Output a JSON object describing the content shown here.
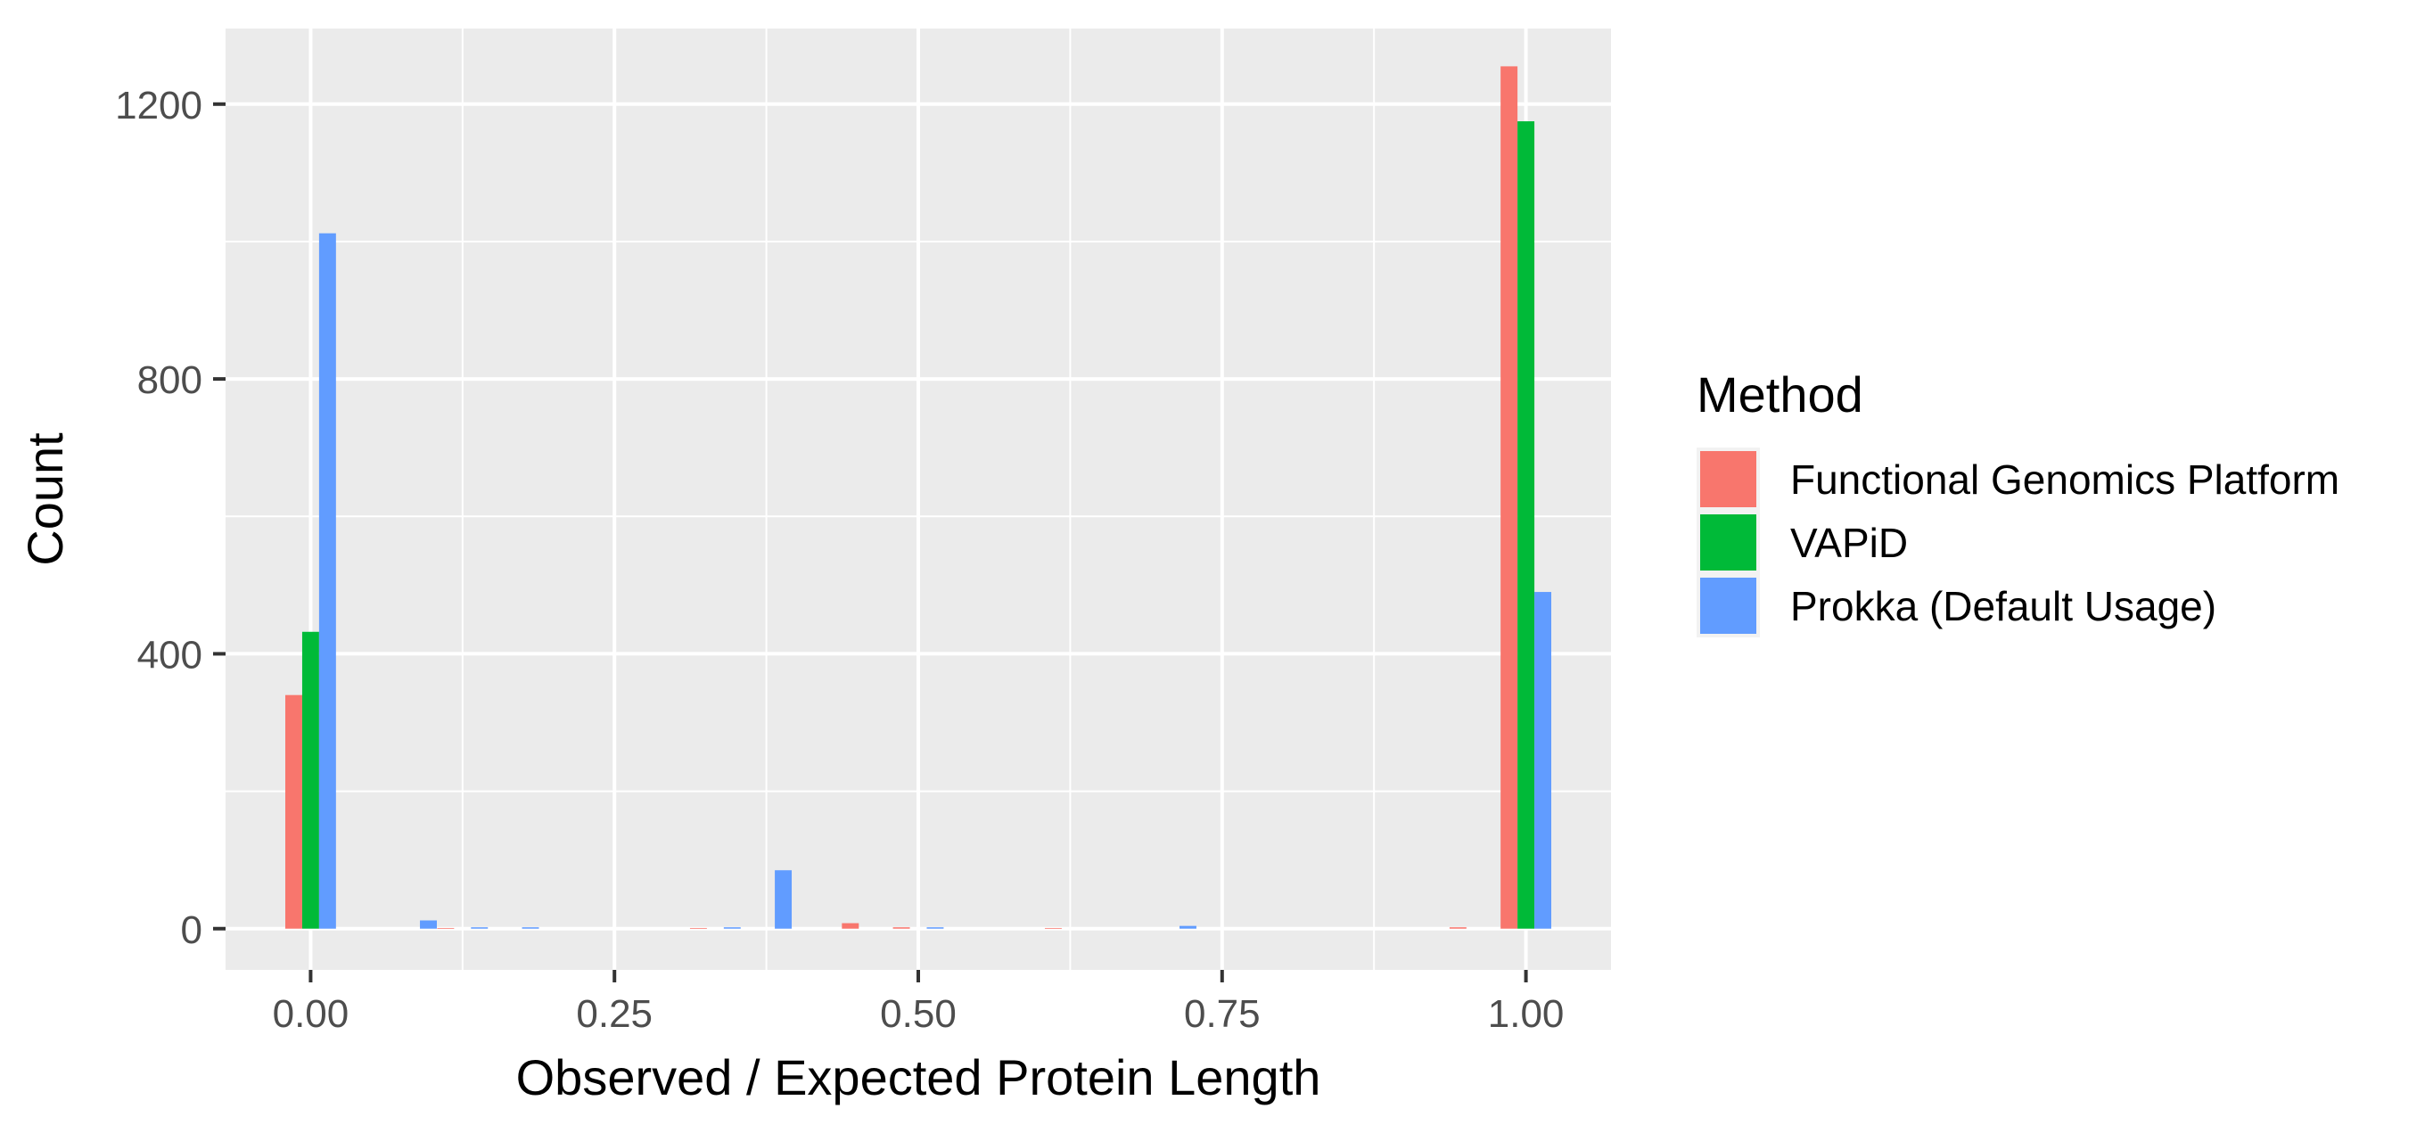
{
  "chart_data": {
    "type": "bar",
    "title": "",
    "xlabel": "Observed / Expected Protein Length",
    "ylabel": "Count",
    "xlim": [
      -0.07,
      1.07
    ],
    "ylim": [
      -60,
      1310
    ],
    "x_ticks": [
      0.0,
      0.25,
      0.5,
      0.75,
      1.0
    ],
    "x_tick_labels": [
      "0.00",
      "0.25",
      "0.50",
      "0.75",
      "1.00"
    ],
    "y_ticks": [
      0,
      400,
      800,
      1200
    ],
    "y_tick_labels": [
      "0",
      "400",
      "800",
      "1200"
    ],
    "grid": true,
    "legend": {
      "title": "Method",
      "position": "right"
    },
    "bin_width": 0.0417,
    "series": [
      {
        "name": "Functional Genomics Platform",
        "color": "#F8766D",
        "x": [
          0.0,
          0.125,
          0.333,
          0.458,
          0.5,
          0.625,
          0.958,
          1.0
        ],
        "values": [
          340,
          1,
          1,
          8,
          2,
          1,
          2,
          1255
        ]
      },
      {
        "name": "VAPiD",
        "color": "#00BA38",
        "x": [
          0.0,
          1.0
        ],
        "values": [
          432,
          1175
        ]
      },
      {
        "name": "Prokka (Default Usage)",
        "color": "#619CFF",
        "x": [
          0.0,
          0.083,
          0.125,
          0.167,
          0.333,
          0.375,
          0.5,
          0.708,
          1.0
        ],
        "values": [
          1012,
          12,
          2,
          2,
          2,
          85,
          2,
          4,
          490
        ]
      }
    ]
  }
}
